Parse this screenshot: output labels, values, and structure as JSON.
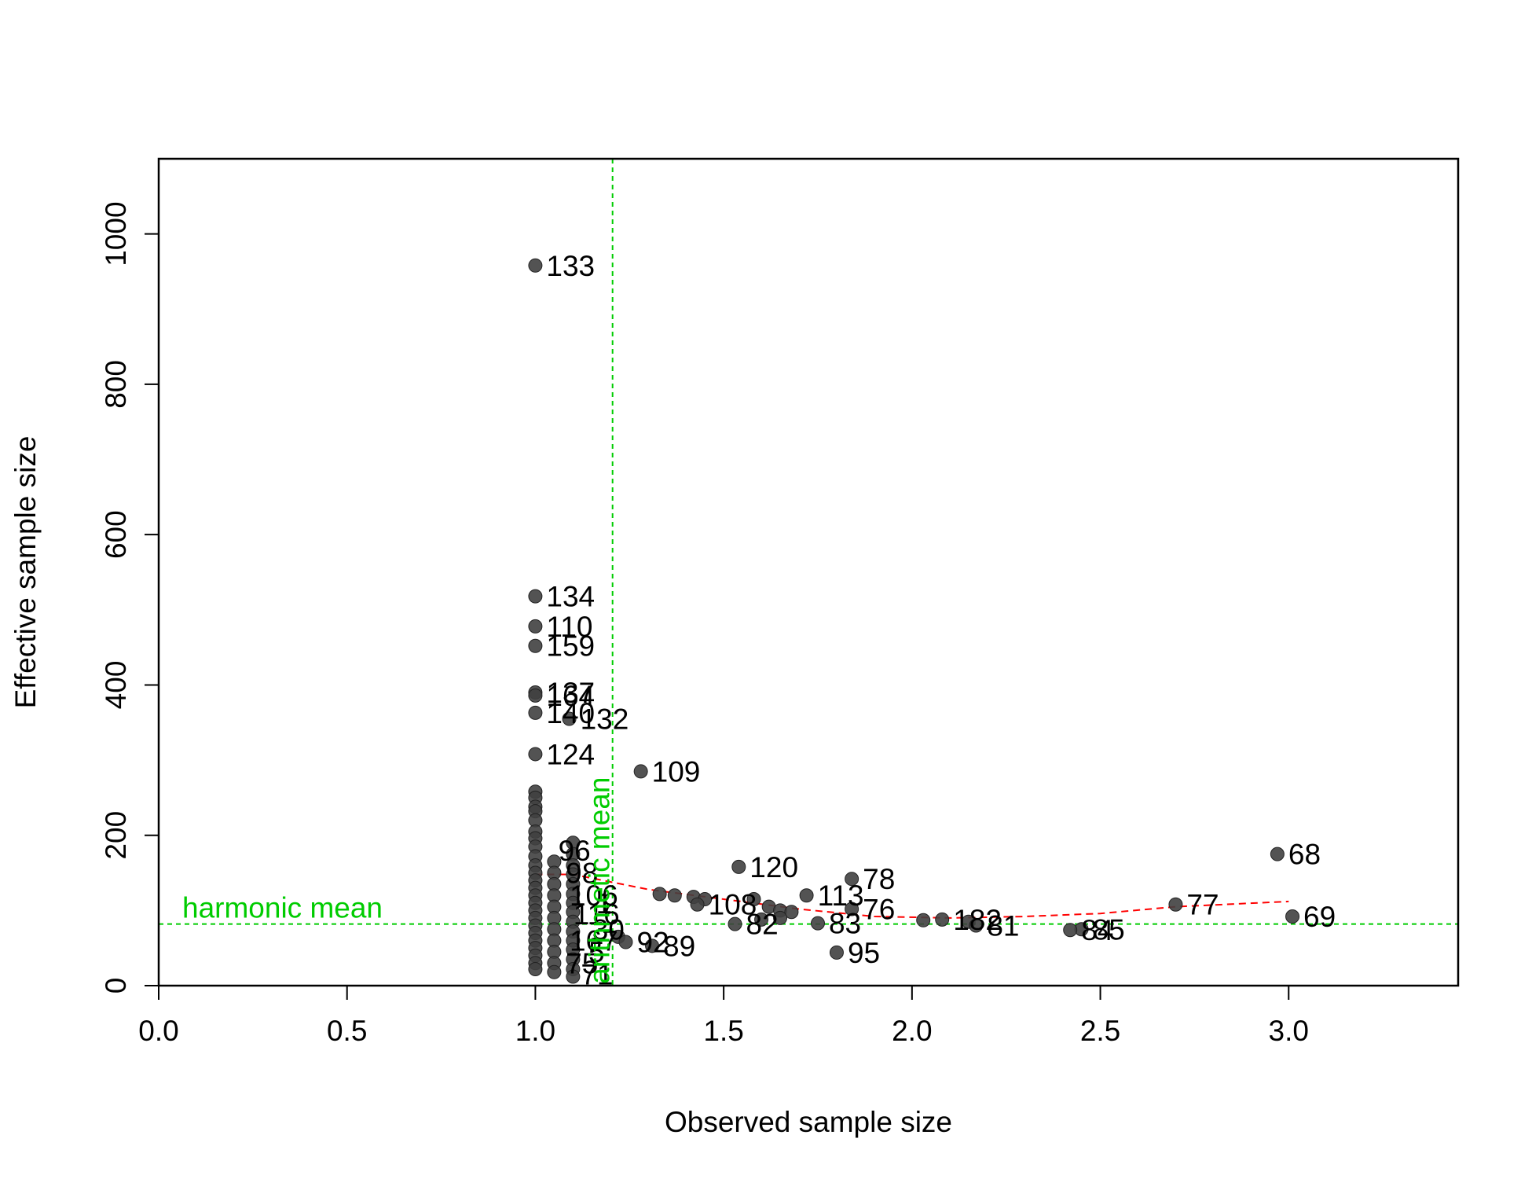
{
  "chart_data": {
    "type": "scatter",
    "xlabel": "Observed sample size",
    "ylabel": "Effective sample size",
    "xlim": [
      0,
      3.45
    ],
    "ylim": [
      0,
      1100
    ],
    "x_ticks": [
      "0.0",
      "0.5",
      "1.0",
      "1.5",
      "2.0",
      "2.5",
      "3.0"
    ],
    "x_tick_values": [
      0,
      0.5,
      1.0,
      1.5,
      2.0,
      2.5,
      3.0
    ],
    "y_ticks": [
      "0",
      "200",
      "400",
      "600",
      "800",
      "1000"
    ],
    "y_tick_values": [
      0,
      200,
      400,
      600,
      800,
      1000
    ],
    "point_color": "#404040",
    "reference_color": "#00cc00",
    "smooth_color": "#ff0000",
    "reference_lines": {
      "arithmetic_mean": {
        "x": 1.205,
        "label": "arithmetic mean"
      },
      "harmonic_mean": {
        "y": 82,
        "label": "harmonic mean"
      }
    },
    "smooth_line": [
      [
        1.0,
        148
      ],
      [
        1.1,
        148
      ],
      [
        1.3,
        128
      ],
      [
        1.5,
        115
      ],
      [
        1.7,
        102
      ],
      [
        1.9,
        92
      ],
      [
        2.1,
        90
      ],
      [
        2.3,
        92
      ],
      [
        2.5,
        96
      ],
      [
        2.7,
        105
      ],
      [
        3.0,
        112
      ]
    ],
    "labeled_points": [
      {
        "x": 1.0,
        "y": 958,
        "label": "133"
      },
      {
        "x": 1.0,
        "y": 518,
        "label": "134"
      },
      {
        "x": 1.0,
        "y": 478,
        "label": "110"
      },
      {
        "x": 1.0,
        "y": 452,
        "label": "159"
      },
      {
        "x": 1.0,
        "y": 390,
        "label": "137"
      },
      {
        "x": 1.0,
        "y": 386,
        "label": "164"
      },
      {
        "x": 1.0,
        "y": 363,
        "label": "140"
      },
      {
        "x": 1.09,
        "y": 355,
        "label": "132"
      },
      {
        "x": 1.0,
        "y": 308,
        "label": "124"
      },
      {
        "x": 1.28,
        "y": 285,
        "label": "109"
      },
      {
        "x": 1.54,
        "y": 158,
        "label": "120"
      },
      {
        "x": 2.97,
        "y": 175,
        "label": "68"
      },
      {
        "x": 1.84,
        "y": 142,
        "label": "78"
      },
      {
        "x": 2.7,
        "y": 108,
        "label": "77"
      },
      {
        "x": 3.01,
        "y": 92,
        "label": "69"
      },
      {
        "x": 1.84,
        "y": 102,
        "label": "76"
      },
      {
        "x": 1.72,
        "y": 120,
        "label": "113"
      },
      {
        "x": 1.8,
        "y": 44,
        "label": "95"
      },
      {
        "x": 1.75,
        "y": 83,
        "label": "83"
      },
      {
        "x": 1.53,
        "y": 82,
        "label": "82"
      },
      {
        "x": 2.17,
        "y": 80,
        "label": "81"
      },
      {
        "x": 2.45,
        "y": 75,
        "label": "85"
      },
      {
        "x": 2.42,
        "y": 74,
        "label": "84"
      },
      {
        "x": 1.31,
        "y": 53,
        "label": "89"
      },
      {
        "x": 1.24,
        "y": 58,
        "label": "92"
      },
      {
        "x": 1.43,
        "y": 108,
        "label": "108"
      },
      {
        "x": 2.08,
        "y": 88,
        "label": "182"
      }
    ],
    "unlabeled_points": [
      [
        1.0,
        258
      ],
      [
        1.0,
        250
      ],
      [
        1.0,
        238
      ],
      [
        1.0,
        232
      ],
      [
        1.0,
        220
      ],
      [
        1.0,
        205
      ],
      [
        1.0,
        196
      ],
      [
        1.0,
        185
      ],
      [
        1.0,
        172
      ],
      [
        1.0,
        160
      ],
      [
        1.0,
        150
      ],
      [
        1.0,
        140
      ],
      [
        1.0,
        130
      ],
      [
        1.0,
        120
      ],
      [
        1.0,
        110
      ],
      [
        1.0,
        100
      ],
      [
        1.0,
        90
      ],
      [
        1.0,
        80
      ],
      [
        1.0,
        70
      ],
      [
        1.0,
        60
      ],
      [
        1.0,
        50
      ],
      [
        1.0,
        40
      ],
      [
        1.0,
        30
      ],
      [
        1.0,
        22
      ],
      [
        1.05,
        165
      ],
      [
        1.05,
        150
      ],
      [
        1.05,
        135
      ],
      [
        1.05,
        120
      ],
      [
        1.05,
        105
      ],
      [
        1.05,
        90
      ],
      [
        1.05,
        75
      ],
      [
        1.05,
        60
      ],
      [
        1.05,
        45
      ],
      [
        1.05,
        30
      ],
      [
        1.05,
        18
      ],
      [
        1.1,
        190
      ],
      [
        1.1,
        175
      ],
      [
        1.1,
        160
      ],
      [
        1.1,
        148
      ],
      [
        1.1,
        135
      ],
      [
        1.1,
        122
      ],
      [
        1.1,
        110
      ],
      [
        1.1,
        98
      ],
      [
        1.1,
        85
      ],
      [
        1.1,
        72
      ],
      [
        1.1,
        60
      ],
      [
        1.1,
        48
      ],
      [
        1.1,
        35
      ],
      [
        1.1,
        22
      ],
      [
        1.1,
        12
      ],
      [
        1.33,
        122
      ],
      [
        1.37,
        120
      ],
      [
        1.42,
        118
      ],
      [
        1.45,
        115
      ],
      [
        1.58,
        115
      ],
      [
        1.62,
        105
      ],
      [
        1.65,
        100
      ],
      [
        1.68,
        98
      ],
      [
        1.6,
        88
      ],
      [
        1.65,
        90
      ],
      [
        2.03,
        87
      ],
      [
        2.15,
        85
      ],
      [
        1.22,
        65
      ]
    ],
    "visible_point_labels": [
      "96",
      "98",
      "106",
      "116",
      "167",
      "75",
      "71",
      "5",
      "30",
      "1"
    ]
  }
}
